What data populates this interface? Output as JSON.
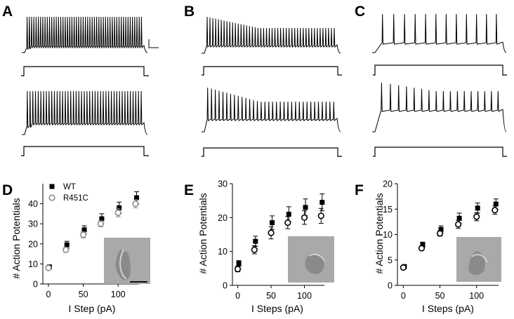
{
  "panels": {
    "A": "A",
    "B": "B",
    "C": "C",
    "D": "D",
    "E": "E",
    "F": "F"
  },
  "legend": {
    "wt": "WT",
    "mut": "R451C"
  },
  "colors": {
    "wt": "#000000",
    "mut": "#8c8c8c",
    "trace": "#000000",
    "inset_bg": "#a9a9a9"
  },
  "traces": {
    "A": {
      "top_spikes": 52,
      "bottom_spikes": 43
    },
    "B": {
      "top_spikes": 46,
      "bottom_spikes": 34
    },
    "C": {
      "top_spikes": 12,
      "bottom_spikes": 17
    }
  },
  "chart_data": [
    {
      "type": "scatter",
      "panel": "D",
      "xlabel": "I Step (pA)",
      "ylabel": "# Action Potentials",
      "xlim": [
        -8,
        130
      ],
      "ylim": [
        0,
        50
      ],
      "xticks": [
        0,
        50,
        100
      ],
      "yticks": [
        0,
        10,
        20,
        30,
        40
      ],
      "x": [
        0,
        25,
        50,
        75,
        100,
        125
      ],
      "series": [
        {
          "name": "WT",
          "marker": "filled-square",
          "values": [
            8.5,
            19.5,
            27,
            32.5,
            38,
            43
          ],
          "err": [
            1,
            1.8,
            2,
            2.5,
            2.8,
            3
          ]
        },
        {
          "name": "R451C",
          "marker": "open-circle",
          "values": [
            8,
            17,
            24.5,
            30,
            35.5,
            40
          ],
          "err": [
            1,
            1.2,
            1.5,
            1.5,
            2,
            2
          ]
        }
      ]
    },
    {
      "type": "scatter",
      "panel": "E",
      "xlabel": "I Steps (pA)",
      "ylabel": "# Action Potentials",
      "xlim": [
        -8,
        130
      ],
      "ylim": [
        0,
        30
      ],
      "xticks": [
        0,
        50,
        100
      ],
      "yticks": [
        0,
        10,
        20,
        30
      ],
      "x": [
        0,
        25,
        50,
        75,
        100,
        125
      ],
      "series": [
        {
          "name": "WT",
          "marker": "filled-square",
          "values": [
            6.5,
            13,
            18.5,
            21,
            23,
            24.5
          ],
          "err": [
            0.8,
            1.5,
            2,
            2.2,
            2.5,
            2.5
          ]
        },
        {
          "name": "R451C",
          "marker": "open-circle",
          "values": [
            4.8,
            10.5,
            15.5,
            18.5,
            20,
            20.5
          ],
          "err": [
            0.8,
            1.2,
            1.8,
            1.8,
            2,
            2.2
          ]
        }
      ]
    },
    {
      "type": "scatter",
      "panel": "F",
      "xlabel": "I Steps (pA)",
      "ylabel": "# Action Potentials",
      "xlim": [
        -8,
        130
      ],
      "ylim": [
        0,
        20
      ],
      "xticks": [
        0,
        50,
        100
      ],
      "yticks": [
        0,
        5,
        10,
        15,
        20
      ],
      "x": [
        0,
        25,
        50,
        75,
        100,
        125
      ],
      "series": [
        {
          "name": "WT",
          "marker": "filled-square",
          "values": [
            3.7,
            8,
            11,
            13.2,
            15.2,
            16
          ],
          "err": [
            0.3,
            0.5,
            0.7,
            1,
            1,
            1
          ]
        },
        {
          "name": "R451C",
          "marker": "open-circle",
          "values": [
            3.5,
            7.3,
            10.2,
            12,
            13.5,
            14.8
          ],
          "err": [
            0.3,
            0.4,
            0.5,
            0.8,
            0.8,
            0.8
          ]
        }
      ]
    }
  ]
}
